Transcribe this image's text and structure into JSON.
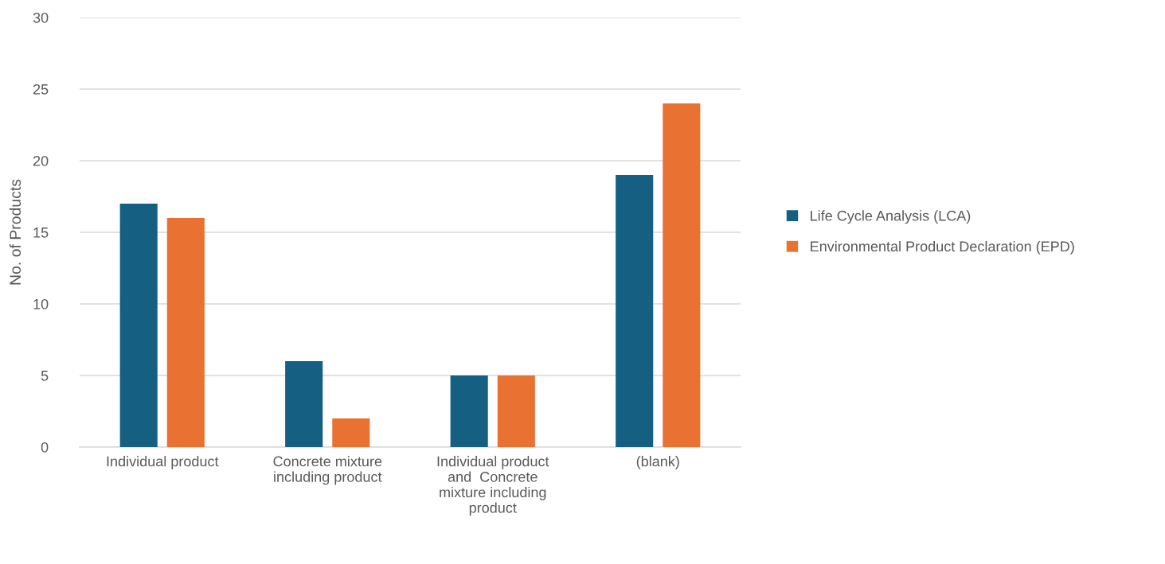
{
  "chart_data": {
    "type": "bar",
    "ylabel": "No. of Products",
    "categories": [
      "Individual product",
      "Concrete mixture\nincluding product",
      "Individual product\nand  Concrete\nmixture including\nproduct",
      "(blank)"
    ],
    "series": [
      {
        "name": "Life Cycle Analysis (LCA)",
        "color": "#156082",
        "values": [
          17,
          6,
          5,
          19
        ]
      },
      {
        "name": "Environmental Product Declaration (EPD)",
        "color": "#e97132",
        "values": [
          16,
          2,
          5,
          24
        ]
      }
    ],
    "ylim": [
      0,
      30
    ],
    "yticks": [
      0,
      5,
      10,
      15,
      20,
      25,
      30
    ],
    "grid": "y",
    "legend": "right"
  }
}
